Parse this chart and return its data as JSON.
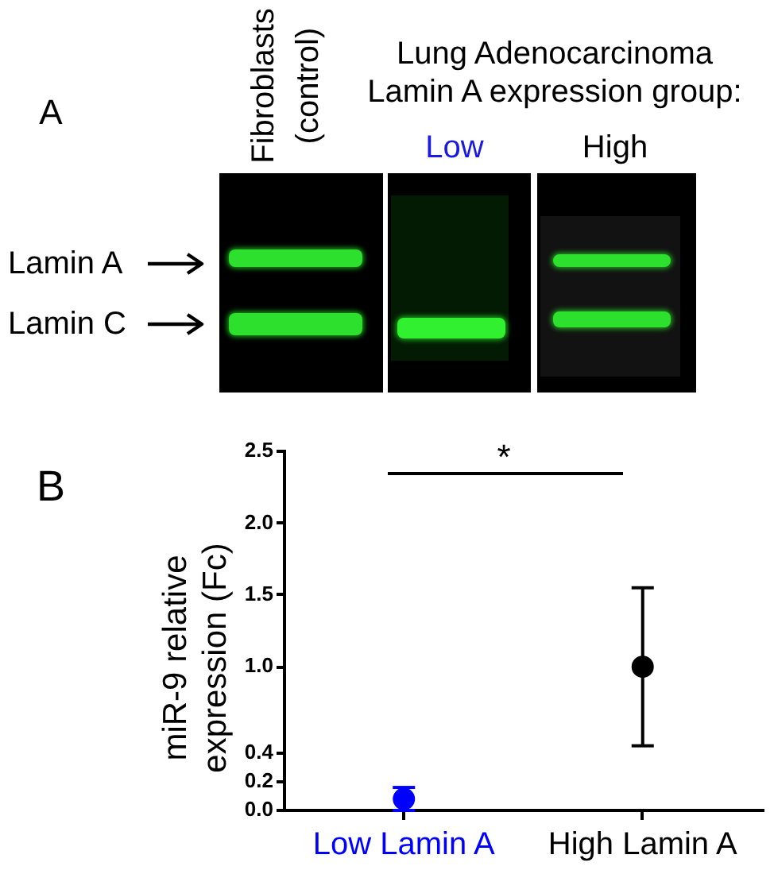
{
  "chart_data": [
    {
      "type": "other",
      "title": "A",
      "annotations": [
        "Fibroblasts (control)",
        "Lung Adenocarcinoma Lamin A expression group:",
        "Low",
        "High",
        "Lamin A",
        "Lamin C"
      ]
    },
    {
      "type": "scatter",
      "title": "B",
      "ylabel": "miR-9 relative expression (Fc)",
      "categories": [
        "Low Lamin A",
        "High Lamin A"
      ],
      "series": [
        {
          "color": "#0000ff",
          "values": [
            0.08,
            null
          ],
          "errors": [
            0.08,
            null
          ]
        },
        {
          "color": "#000000",
          "values": [
            null,
            1
          ],
          "errors": [
            null,
            0.55
          ]
        }
      ],
      "ylim": [
        0,
        2.5
      ],
      "yticks": [
        {
          "value": 0,
          "label": "0.0"
        },
        0.2,
        0.4,
        {
          "value": 1,
          "label": "1.0"
        },
        1.5,
        {
          "value": 2,
          "label": "2.0"
        },
        2.5
      ],
      "marker": "circle",
      "annotations": [
        "*"
      ]
    }
  ]
}
